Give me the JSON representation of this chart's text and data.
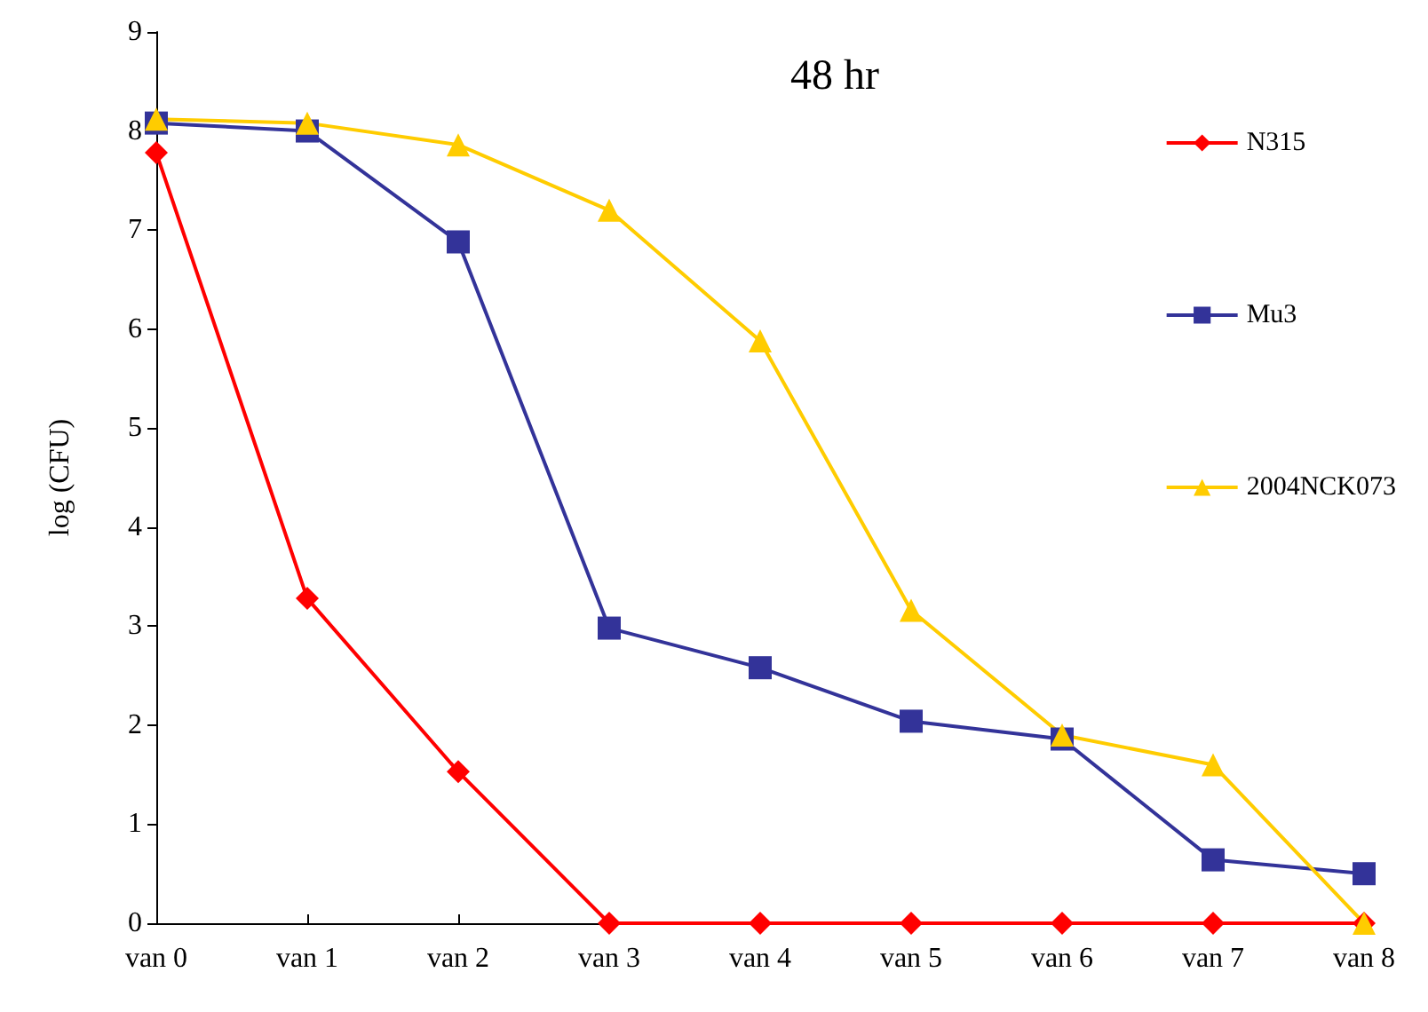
{
  "chart_data": {
    "type": "line",
    "title": "48 hr",
    "ylabel": "log (CFU)",
    "categories": [
      "van 0",
      "van 1",
      "van 2",
      "van 3",
      "van 4",
      "van 5",
      "van 6",
      "van 7",
      "van 8"
    ],
    "series": [
      {
        "name": "N315",
        "color": "#ff0000",
        "marker": "diamond",
        "values": [
          7.78,
          3.28,
          1.53,
          0,
          0,
          0,
          0,
          0,
          0
        ]
      },
      {
        "name": "Mu3",
        "color": "#333399",
        "marker": "square",
        "values": [
          8.08,
          8.0,
          6.88,
          2.98,
          2.58,
          2.04,
          1.86,
          0.64,
          0.5
        ]
      },
      {
        "name": "2004NCK073",
        "color": "#ffcc00",
        "marker": "triangle",
        "values": [
          8.12,
          8.08,
          7.86,
          7.2,
          5.88,
          3.16,
          1.9,
          1.6,
          0
        ]
      }
    ],
    "ylim": [
      0,
      9
    ],
    "yticks": [
      0,
      1,
      2,
      3,
      4,
      5,
      6,
      7,
      8,
      9
    ],
    "grid": false,
    "legend": "right",
    "line_style": "solid"
  }
}
